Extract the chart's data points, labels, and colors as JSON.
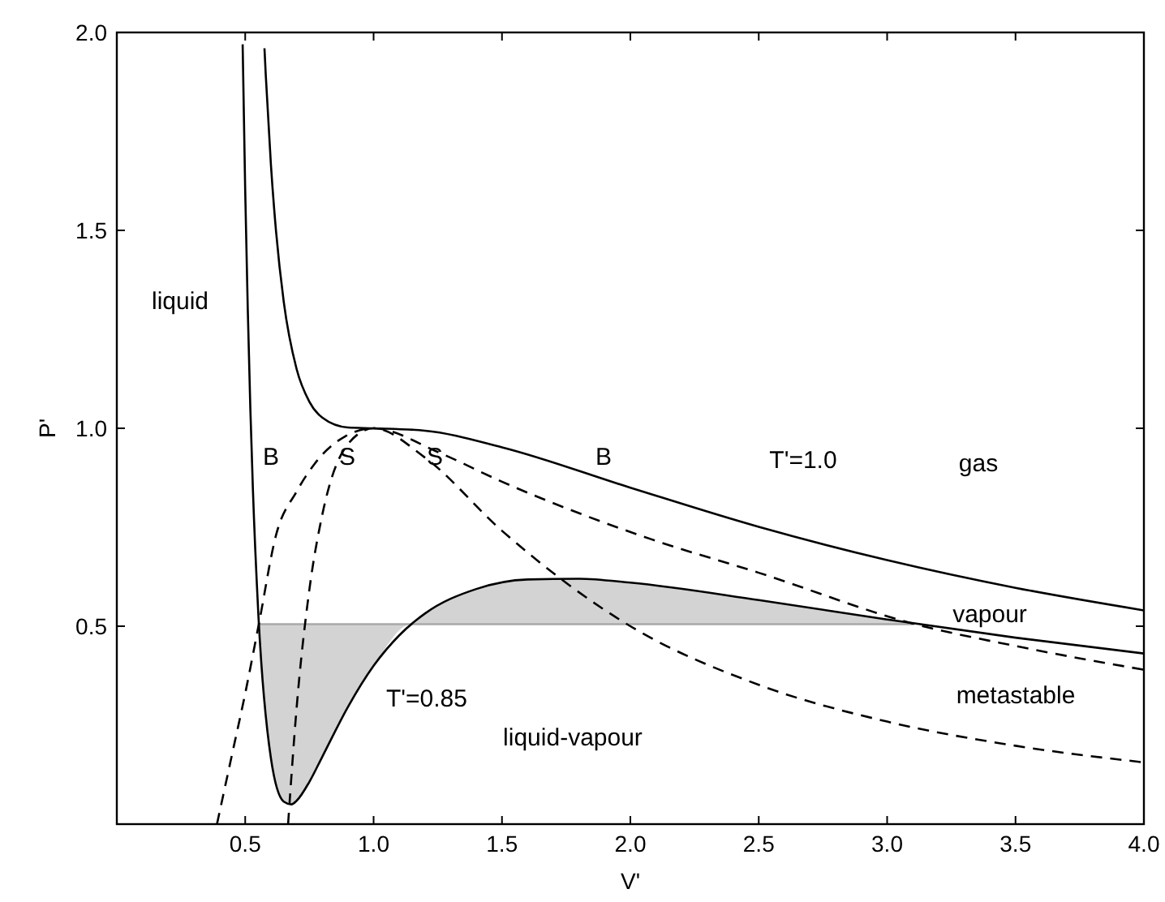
{
  "chart_data": {
    "type": "line",
    "xlabel": "V'",
    "ylabel": "P'",
    "xlim": [
      0,
      4
    ],
    "ylim": [
      0,
      2
    ],
    "xticks": [
      {
        "value": 0.5,
        "label": "0.5"
      },
      {
        "value": 1,
        "label": "1.0"
      },
      {
        "value": 1.5,
        "label": "1.5"
      },
      {
        "value": 2,
        "label": "2.0"
      },
      {
        "value": 2.5,
        "label": "2.5"
      },
      {
        "value": 3,
        "label": "3.0"
      },
      {
        "value": 3.5,
        "label": "3.5"
      },
      {
        "value": 4,
        "label": "4.0"
      }
    ],
    "yticks": [
      {
        "value": 0.5,
        "label": "0.5"
      },
      {
        "value": 1,
        "label": "1.0"
      },
      {
        "value": 1.5,
        "label": "1.5"
      },
      {
        "value": 2,
        "label": "2.0"
      }
    ],
    "grid": false,
    "series": [
      {
        "color": "#a8a8a8",
        "line_style": "solid",
        "x": [
          0.553,
          0.6,
          0.65,
          0.68,
          0.7,
          0.75,
          0.8,
          0.9,
          1.0,
          1.145,
          1.2,
          1.4,
          1.6,
          1.8,
          2.0,
          2.5,
          3.0,
          3.1
        ],
        "values": [
          0.505,
          0.505,
          0.505,
          0.505,
          0.505,
          0.505,
          0.505,
          0.505,
          0.505,
          0.505,
          0.505,
          0.505,
          0.505,
          0.505,
          0.505,
          0.505,
          0.505,
          0.505
        ],
        "lower": [
          0.505,
          0.167,
          0.057,
          0.05,
          0.059,
          0.107,
          0.17,
          0.296,
          0.4,
          0.505,
          0.505,
          0.505,
          0.505,
          0.505,
          0.505,
          0.505,
          0.505,
          0.505
        ],
        "upper": [
          0.505,
          0.505,
          0.505,
          0.505,
          0.505,
          0.505,
          0.505,
          0.505,
          0.505,
          0.505,
          0.532,
          0.594,
          0.618,
          0.62,
          0.61,
          0.566,
          0.517,
          0.505
        ]
      },
      {
        "color": "#000000",
        "line_style": "solid",
        "x": [
          0.575,
          0.58,
          0.6,
          0.62,
          0.65,
          0.7,
          0.75,
          0.8,
          0.9,
          1.0,
          1.2,
          1.5,
          2.0,
          2.5,
          3.0,
          3.5,
          4.0
        ],
        "values": [
          1.96,
          1.893,
          1.667,
          1.498,
          1.32,
          1.15,
          1.067,
          1.027,
          1.002,
          1.0,
          0.994,
          0.952,
          0.85,
          0.751,
          0.667,
          0.597,
          0.54
        ]
      },
      {
        "color": "#000000",
        "line_style": "solid",
        "x": [
          0.49,
          0.5,
          0.51,
          0.52,
          0.53,
          0.55,
          0.6,
          0.65,
          0.68,
          0.7,
          0.75,
          0.8,
          0.9,
          1.0,
          1.1,
          1.2,
          1.4,
          1.6,
          1.8,
          2.0,
          2.5,
          3.0,
          3.5,
          4.0
        ],
        "values": [
          1.97,
          1.6,
          1.3,
          1.05,
          0.845,
          0.545,
          0.167,
          0.057,
          0.05,
          0.059,
          0.107,
          0.17,
          0.296,
          0.4,
          0.477,
          0.532,
          0.594,
          0.618,
          0.62,
          0.61,
          0.566,
          0.517,
          0.471,
          0.431
        ]
      },
      {
        "color": "#000000",
        "line_style": "dashed",
        "x": [
          0.39,
          0.45,
          0.5,
          0.553,
          0.62,
          0.7,
          0.77,
          0.89,
          1.0,
          1.25,
          1.5,
          2.08,
          2.5,
          3.11,
          3.5,
          4.0
        ],
        "values": [
          0,
          0.18,
          0.33,
          0.505,
          0.73,
          0.84,
          0.91,
          0.98,
          1.0,
          0.94,
          0.865,
          0.72,
          0.635,
          0.505,
          0.45,
          0.39
        ]
      },
      {
        "color": "#000000",
        "line_style": "dashed",
        "x": [
          0.667,
          0.7,
          0.75,
          0.8,
          0.9,
          1.0,
          1.2,
          1.5,
          2.0,
          2.5,
          3.0,
          3.5,
          4.0
        ],
        "values": [
          0,
          0.292,
          0.593,
          0.781,
          0.96,
          1.0,
          0.926,
          0.741,
          0.5,
          0.352,
          0.259,
          0.198,
          0.156
        ]
      }
    ],
    "annotations": [
      "liquid",
      "gas",
      "T'=1.0",
      "vapour",
      "metastable",
      "liquid-vapour",
      "T'=0.85",
      "B",
      "S",
      "S",
      "B"
    ]
  }
}
